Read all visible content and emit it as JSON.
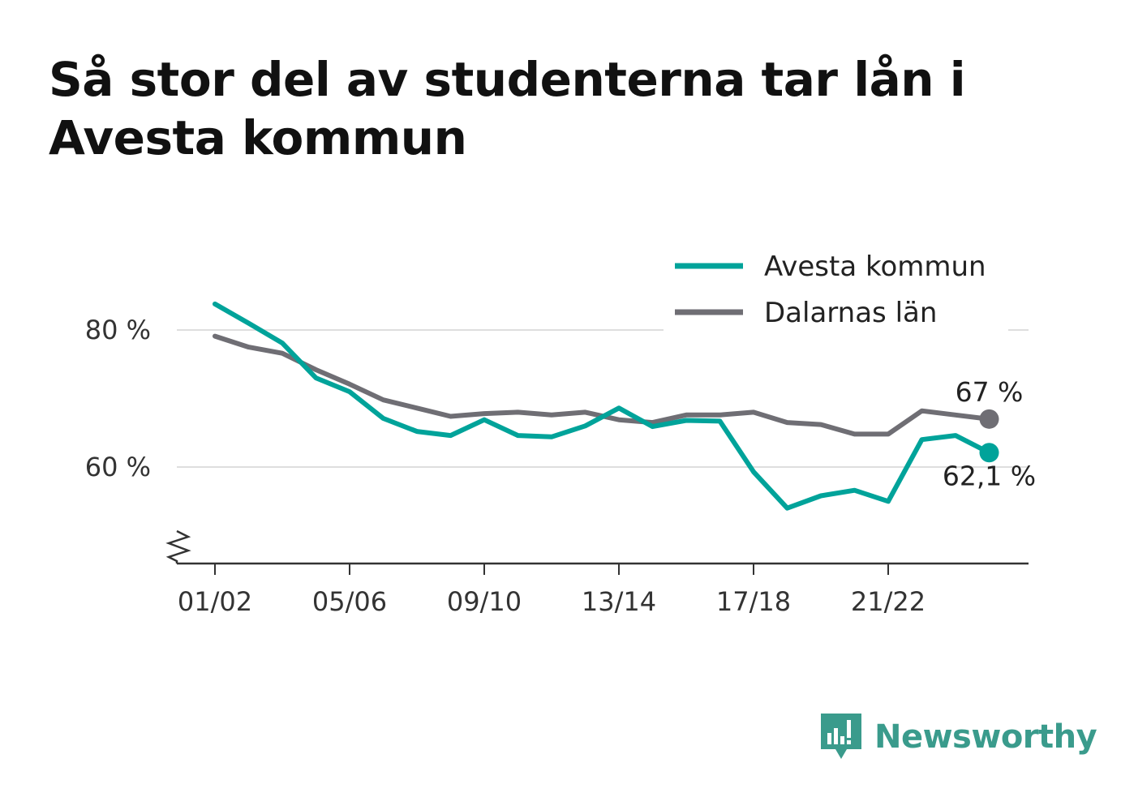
{
  "title": "Så stor del av studenterna tar lån i Avesta kommun",
  "brand": {
    "name": "Newsworthy"
  },
  "chart_data": {
    "type": "line",
    "title": "Så stor del av studenterna tar lån i Avesta kommun",
    "x": [
      "01/02",
      "02/03",
      "03/04",
      "04/05",
      "05/06",
      "06/07",
      "07/08",
      "08/09",
      "09/10",
      "10/11",
      "11/12",
      "12/13",
      "13/14",
      "14/15",
      "15/16",
      "16/17",
      "17/18",
      "18/19",
      "19/20",
      "20/21",
      "21/22",
      "22/23",
      "23/24",
      "24/25"
    ],
    "x_tick_labels": [
      "01/02",
      "05/06",
      "09/10",
      "13/14",
      "17/18",
      "21/22"
    ],
    "y_ticks": [
      60,
      80
    ],
    "y_tick_labels": [
      "60 %",
      "80 %"
    ],
    "ylim": [
      45.5,
      83
    ],
    "y_axis_break": true,
    "grid": "horizontal",
    "legend_position": "top-right",
    "series": [
      {
        "name": "Avesta kommun",
        "color": "#00a39a",
        "values": [
          83.8,
          81.0,
          78.1,
          73.0,
          71.0,
          67.1,
          65.2,
          64.6,
          66.9,
          64.6,
          64.4,
          66.0,
          68.6,
          65.9,
          66.8,
          66.7,
          59.3,
          54.0,
          55.8,
          56.6,
          55.0,
          64.0,
          64.6,
          62.1
        ],
        "end_label": "62,1 %"
      },
      {
        "name": "Dalarnas län",
        "color": "#6f6e74",
        "values": [
          79.1,
          77.5,
          76.6,
          74.2,
          72.1,
          69.8,
          68.6,
          67.4,
          67.8,
          68.0,
          67.6,
          68.0,
          66.9,
          66.5,
          67.6,
          67.6,
          68.0,
          66.5,
          66.2,
          64.8,
          64.8,
          68.2,
          67.6,
          67.0
        ],
        "end_label": "67 %"
      }
    ]
  }
}
